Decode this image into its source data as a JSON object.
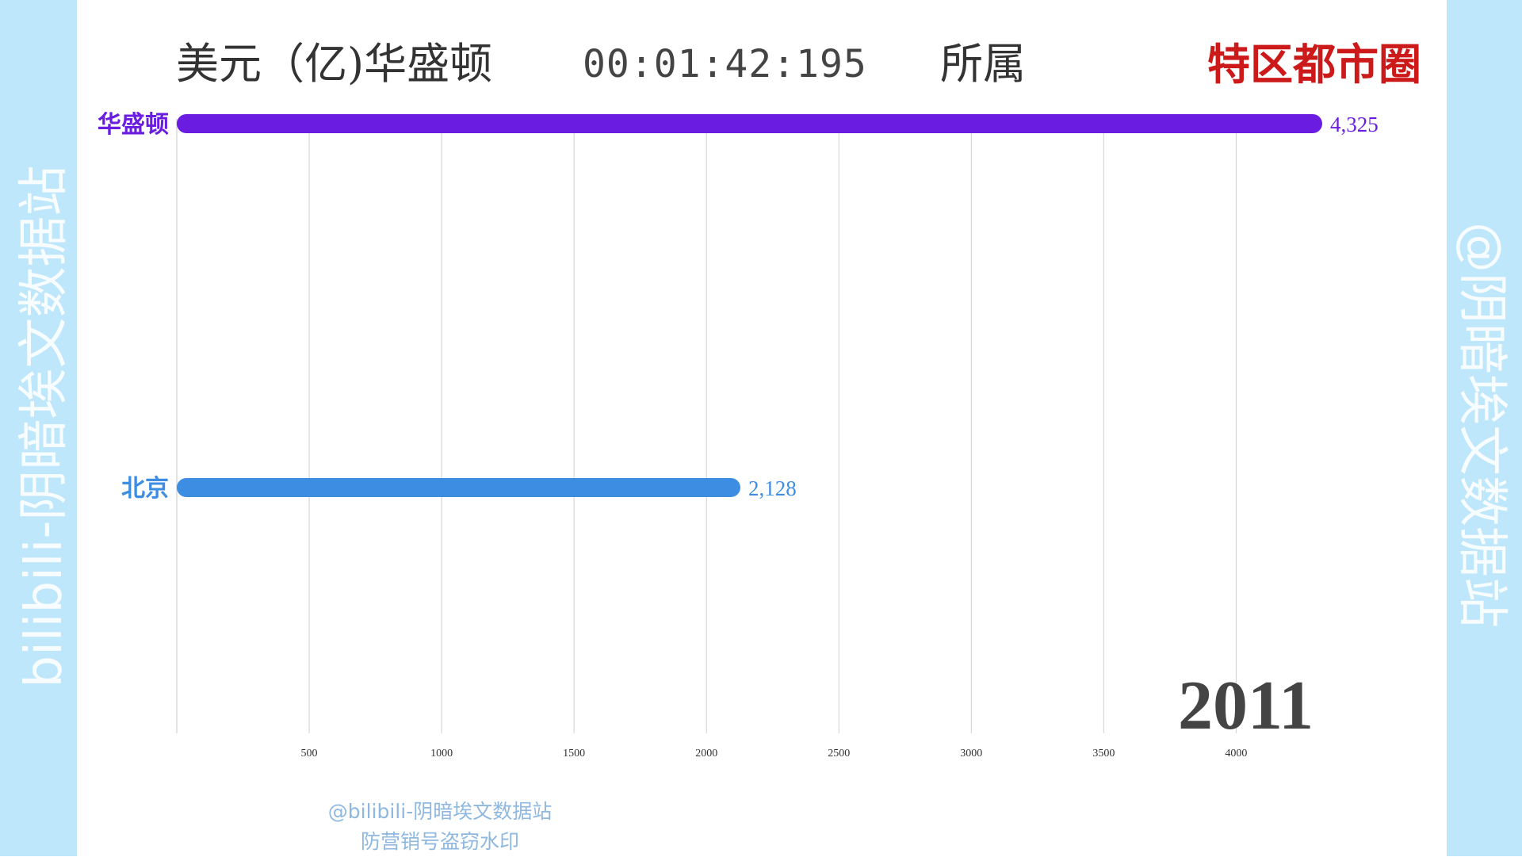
{
  "header": {
    "unit_label": "美元（亿)华盛顿",
    "timer": "00:01:42:195",
    "belong_label": "所属",
    "region_label": "特区都市圈"
  },
  "side_watermarks": {
    "left": "bilibili-阴暗埃文数据站",
    "right": "@阴暗埃文数据站"
  },
  "bottom_watermark": {
    "line1": "@bilibili-阴暗埃文数据站",
    "line2": "防营销号盗窃水印"
  },
  "chart_data": {
    "type": "bar",
    "orientation": "horizontal",
    "year": "2011",
    "categories": [
      "华盛顿",
      "北京"
    ],
    "values": [
      4325,
      2128
    ],
    "value_labels": [
      "4,325",
      "2,128"
    ],
    "colors": [
      "#6a1de0",
      "#3d8ee3"
    ],
    "xlim": [
      0,
      4325
    ],
    "xticks": [
      500,
      1000,
      1500,
      2000,
      2500,
      3000,
      3500,
      4000
    ],
    "grid": true
  }
}
